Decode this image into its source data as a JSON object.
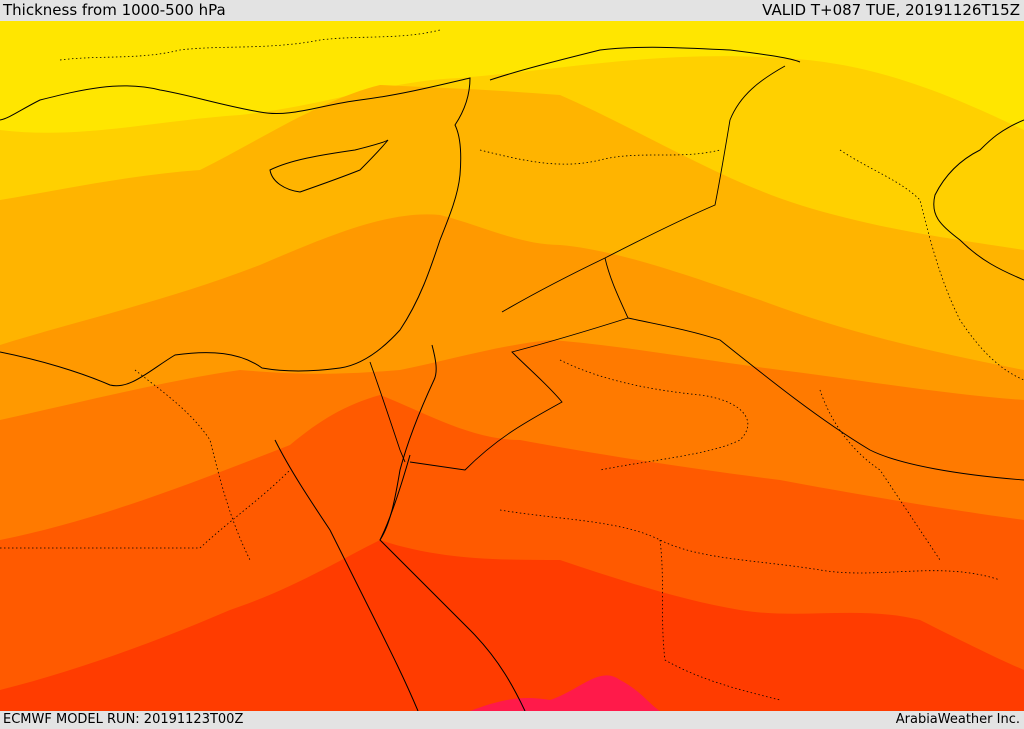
{
  "header": {
    "title": "Thickness from 1000-500 hPa",
    "valid": "VALID T+087 TUE, 20191126T15Z"
  },
  "footer": {
    "model_run": "ECMWF MODEL RUN: 20191123T00Z",
    "credit": "ArabiaWeather Inc."
  },
  "colors": {
    "band_1": "#ffe600",
    "band_2": "#ffd000",
    "band_3": "#ffb400",
    "band_4": "#ff9900",
    "band_5": "#ff7a00",
    "band_6": "#ff5a00",
    "band_7": "#ff3c00",
    "band_8": "#ff1a4a",
    "coast": "#000000"
  }
}
